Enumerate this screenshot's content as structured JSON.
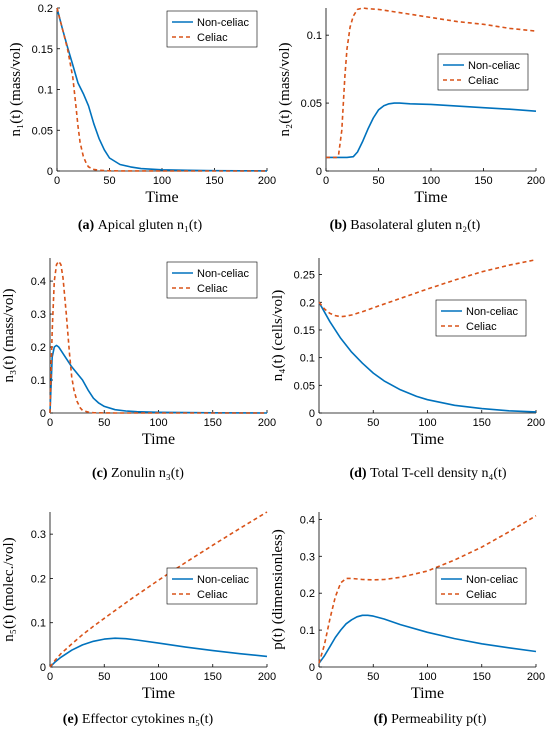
{
  "colors": {
    "non_celiac": "#0072BD",
    "celiac": "#D95319"
  },
  "chart_data": [
    {
      "type": "line",
      "panel_id": "a",
      "caption_label": "(a)",
      "caption_text": "Apical gluten n₁(t)",
      "xlabel": "Time",
      "ylabel": "n₁(t)  (mass/vol)",
      "xlim": [
        0,
        200
      ],
      "ylim": [
        0,
        0.2
      ],
      "xticks": [
        0,
        50,
        100,
        150,
        200
      ],
      "yticks": [
        0,
        0.05,
        0.1,
        0.15,
        0.2
      ],
      "ytick_labels": [
        "0",
        "0.05",
        "0.1",
        "0.15",
        "0.2"
      ],
      "legend": "top-right",
      "series": [
        {
          "name": "Non-celiac",
          "style": "solid",
          "x": [
            0,
            5,
            10,
            15,
            20,
            25,
            30,
            35,
            40,
            45,
            50,
            60,
            70,
            80,
            100,
            125,
            150,
            175,
            200
          ],
          "y": [
            0.2,
            0.175,
            0.152,
            0.13,
            0.108,
            0.095,
            0.08,
            0.058,
            0.04,
            0.026,
            0.016,
            0.008,
            0.005,
            0.003,
            0.0015,
            0.0008,
            0.0004,
            0.0002,
            0.0001
          ]
        },
        {
          "name": "Celiac",
          "style": "dashed",
          "x": [
            0,
            5,
            10,
            15,
            18,
            20,
            22,
            25,
            28,
            30,
            35,
            40,
            50,
            60,
            100,
            150,
            200
          ],
          "y": [
            0.2,
            0.175,
            0.15,
            0.115,
            0.08,
            0.055,
            0.035,
            0.018,
            0.009,
            0.005,
            0.002,
            0.001,
            0.0003,
            0.0001,
            0,
            0,
            0
          ]
        }
      ]
    },
    {
      "type": "line",
      "panel_id": "b",
      "caption_label": "(b)",
      "caption_text": "Basolateral gluten n₂(t)",
      "xlabel": "Time",
      "ylabel": "n₂(t)  (mass/vol)",
      "xlim": [
        0,
        200
      ],
      "ylim": [
        0,
        0.12
      ],
      "xticks": [
        0,
        50,
        100,
        150,
        200
      ],
      "yticks": [
        0,
        0.05,
        0.1
      ],
      "ytick_labels": [
        "0",
        "0.05",
        "0.1"
      ],
      "legend": "middle-right",
      "series": [
        {
          "name": "Non-celiac",
          "style": "solid",
          "x": [
            0,
            10,
            20,
            26,
            30,
            35,
            40,
            45,
            50,
            55,
            60,
            65,
            70,
            80,
            100,
            125,
            150,
            175,
            200
          ],
          "y": [
            0.01,
            0.01,
            0.01,
            0.0105,
            0.014,
            0.022,
            0.031,
            0.039,
            0.045,
            0.048,
            0.0495,
            0.05,
            0.05,
            0.0495,
            0.049,
            0.0478,
            0.0466,
            0.0455,
            0.044
          ]
        },
        {
          "name": "Celiac",
          "style": "dashed",
          "x": [
            0,
            10,
            12,
            15,
            18,
            20,
            23,
            26,
            30,
            35,
            40,
            50,
            75,
            100,
            125,
            150,
            175,
            200
          ],
          "y": [
            0.01,
            0.01,
            0.012,
            0.03,
            0.07,
            0.09,
            0.106,
            0.114,
            0.119,
            0.12,
            0.1195,
            0.119,
            0.116,
            0.113,
            0.11,
            0.108,
            0.105,
            0.103
          ]
        }
      ]
    },
    {
      "type": "line",
      "panel_id": "c",
      "caption_label": "(c)",
      "caption_text": "Zonulin n₃(t)",
      "xlabel": "Time",
      "ylabel": "n₃(t)  (mass/vol)",
      "xlim": [
        0,
        200
      ],
      "ylim": [
        0,
        0.47
      ],
      "xticks": [
        0,
        50,
        100,
        150,
        200
      ],
      "yticks": [
        0,
        0.1,
        0.2,
        0.3,
        0.4
      ],
      "ytick_labels": [
        "0",
        "0.1",
        "0.2",
        "0.3",
        "0.4"
      ],
      "legend": "top-right",
      "series": [
        {
          "name": "Non-celiac",
          "style": "solid",
          "x": [
            0,
            2,
            4,
            6,
            8,
            10,
            15,
            20,
            25,
            30,
            35,
            40,
            45,
            50,
            60,
            70,
            80,
            100,
            150,
            200
          ],
          "y": [
            0,
            0.17,
            0.2,
            0.205,
            0.2,
            0.19,
            0.165,
            0.14,
            0.12,
            0.1,
            0.07,
            0.045,
            0.03,
            0.02,
            0.01,
            0.006,
            0.004,
            0.002,
            0.0005,
            0.0001
          ]
        },
        {
          "name": "Celiac",
          "style": "dashed",
          "x": [
            0,
            2,
            4,
            6,
            8,
            10,
            12,
            15,
            18,
            20,
            22,
            25,
            28,
            30,
            35,
            40,
            50,
            60,
            100,
            200
          ],
          "y": [
            0,
            0.25,
            0.4,
            0.45,
            0.46,
            0.45,
            0.41,
            0.3,
            0.18,
            0.11,
            0.07,
            0.035,
            0.015,
            0.008,
            0.003,
            0.001,
            0.0003,
            0.0001,
            0,
            0
          ]
        }
      ]
    },
    {
      "type": "line",
      "panel_id": "d",
      "caption_label": "(d)",
      "caption_text": "Total T-cell density n₄(t)",
      "xlabel": "Time",
      "ylabel": "n₄(t)  (cells/vol)",
      "xlim": [
        0,
        200
      ],
      "ylim": [
        0,
        0.28
      ],
      "xticks": [
        0,
        50,
        100,
        150,
        200
      ],
      "yticks": [
        0,
        0.05,
        0.1,
        0.15,
        0.2,
        0.25
      ],
      "ytick_labels": [
        "0",
        "0.05",
        "0.1",
        "0.15",
        "0.2",
        "0.25"
      ],
      "legend": "middle-right",
      "series": [
        {
          "name": "Non-celiac",
          "style": "solid",
          "x": [
            0,
            10,
            20,
            30,
            40,
            50,
            60,
            75,
            90,
            100,
            125,
            150,
            175,
            200
          ],
          "y": [
            0.2,
            0.165,
            0.135,
            0.11,
            0.09,
            0.072,
            0.058,
            0.042,
            0.03,
            0.024,
            0.014,
            0.008,
            0.004,
            0.002
          ]
        },
        {
          "name": "Celiac",
          "style": "dashed",
          "x": [
            0,
            5,
            10,
            15,
            20,
            25,
            30,
            40,
            50,
            75,
            100,
            125,
            150,
            175,
            200
          ],
          "y": [
            0.2,
            0.188,
            0.18,
            0.176,
            0.174,
            0.175,
            0.177,
            0.183,
            0.19,
            0.207,
            0.224,
            0.24,
            0.255,
            0.267,
            0.277
          ]
        }
      ]
    },
    {
      "type": "line",
      "panel_id": "e",
      "caption_label": "(e)",
      "caption_text": "Effector cytokines n₅(t)",
      "xlabel": "Time",
      "ylabel": "n₅(t)  (molec./vol)",
      "xlim": [
        0,
        200
      ],
      "ylim": [
        0,
        0.35
      ],
      "xticks": [
        0,
        50,
        100,
        150,
        200
      ],
      "yticks": [
        0,
        0.1,
        0.2,
        0.3
      ],
      "ytick_labels": [
        "0",
        "0.1",
        "0.2",
        "0.3"
      ],
      "legend": "middle-right",
      "series": [
        {
          "name": "Non-celiac",
          "style": "solid",
          "x": [
            0,
            5,
            10,
            20,
            30,
            40,
            50,
            60,
            70,
            80,
            100,
            125,
            150,
            175,
            200
          ],
          "y": [
            0,
            0.012,
            0.022,
            0.038,
            0.05,
            0.058,
            0.063,
            0.065,
            0.064,
            0.061,
            0.054,
            0.045,
            0.037,
            0.03,
            0.024
          ]
        },
        {
          "name": "Celiac",
          "style": "dashed",
          "x": [
            0,
            5,
            10,
            20,
            30,
            40,
            50,
            75,
            100,
            125,
            150,
            175,
            200
          ],
          "y": [
            0,
            0.016,
            0.03,
            0.052,
            0.073,
            0.092,
            0.11,
            0.154,
            0.196,
            0.236,
            0.275,
            0.313,
            0.35
          ]
        }
      ]
    },
    {
      "type": "line",
      "panel_id": "f",
      "caption_label": "(f)",
      "caption_text": "Permeability p(t)",
      "xlabel": "Time",
      "ylabel": "p(t)  (dimensionless)",
      "xlim": [
        0,
        200
      ],
      "ylim": [
        0,
        0.42
      ],
      "xticks": [
        0,
        50,
        100,
        150,
        200
      ],
      "yticks": [
        0,
        0.1,
        0.2,
        0.3,
        0.4
      ],
      "ytick_labels": [
        "0",
        "0.1",
        "0.2",
        "0.3",
        "0.4"
      ],
      "legend": "middle-right",
      "series": [
        {
          "name": "Non-celiac",
          "style": "solid",
          "x": [
            0,
            5,
            10,
            15,
            20,
            25,
            30,
            35,
            40,
            45,
            50,
            60,
            75,
            100,
            125,
            150,
            175,
            200
          ],
          "y": [
            0.01,
            0.03,
            0.055,
            0.08,
            0.1,
            0.117,
            0.128,
            0.136,
            0.14,
            0.14,
            0.138,
            0.13,
            0.115,
            0.094,
            0.077,
            0.063,
            0.052,
            0.042
          ]
        },
        {
          "name": "Celiac",
          "style": "dashed",
          "x": [
            0,
            5,
            10,
            15,
            20,
            25,
            30,
            40,
            50,
            60,
            75,
            100,
            125,
            150,
            175,
            200
          ],
          "y": [
            0.01,
            0.06,
            0.13,
            0.19,
            0.228,
            0.24,
            0.24,
            0.237,
            0.236,
            0.237,
            0.243,
            0.26,
            0.29,
            0.325,
            0.366,
            0.41
          ]
        }
      ]
    }
  ]
}
